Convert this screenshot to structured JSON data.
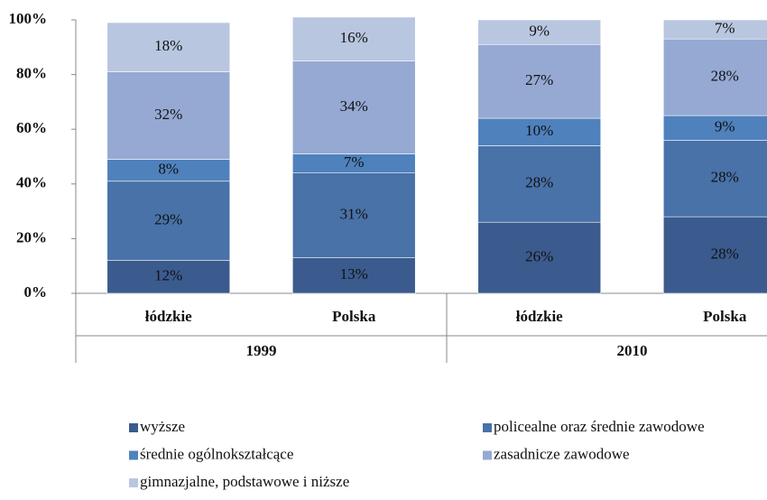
{
  "chart_data": {
    "type": "stacked_bar",
    "categories": [
      "łódzkie",
      "Polska",
      "łódzkie",
      "Polska"
    ],
    "groups": [
      "1999",
      "2010"
    ],
    "series": [
      {
        "name": "wyższe",
        "color": "#3b5b8e",
        "values": [
          12,
          13,
          26,
          28
        ],
        "value_labels": [
          "12%",
          "13%",
          "26%",
          "28%"
        ]
      },
      {
        "name": "policealne oraz średnie zawodowe",
        "color": "#4872a8",
        "values": [
          29,
          31,
          28,
          28
        ],
        "value_labels": [
          "29%",
          "31%",
          "28%",
          "28%"
        ]
      },
      {
        "name": "średnie ogólnokształcące",
        "color": "#4f81bd",
        "values": [
          8,
          7,
          10,
          9
        ],
        "value_labels": [
          "8%",
          "7%",
          "10%",
          "9%"
        ]
      },
      {
        "name": "zasadnicze zawodowe",
        "color": "#95a9d3",
        "values": [
          32,
          34,
          27,
          28
        ],
        "value_labels": [
          "32%",
          "34%",
          "27%",
          "28%"
        ]
      },
      {
        "name": "gimnazjalne, podstawowe i niższe",
        "color": "#b9c6e0",
        "values": [
          18,
          16,
          9,
          7
        ],
        "value_labels": [
          "18%",
          "16%",
          "9%",
          "7%"
        ]
      }
    ],
    "ylim": [
      0,
      100
    ],
    "yticks": [
      {
        "value": 0,
        "label": "0%"
      },
      {
        "value": 20,
        "label": "20%"
      },
      {
        "value": 40,
        "label": "40%"
      },
      {
        "value": 60,
        "label": "60%"
      },
      {
        "value": 80,
        "label": "80%"
      },
      {
        "value": 100,
        "label": "100%"
      }
    ],
    "grid": false,
    "legend": "bottom"
  }
}
